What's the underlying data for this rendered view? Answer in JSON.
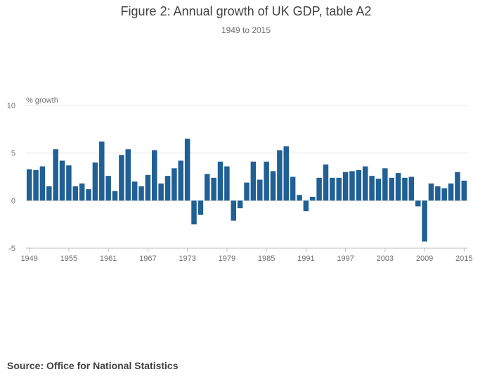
{
  "title": "Figure 2: Annual growth of UK GDP, table A2",
  "subtitle": "1949 to 2015",
  "source": "Source: Office for National Statistics",
  "colors": {
    "bar": "#206095",
    "grid": "#e6e6e6",
    "axis": "#bebebe"
  },
  "chart_data": {
    "type": "bar",
    "ylabel": "% growth",
    "ylim": [
      -5,
      10
    ],
    "yticks": [
      -5,
      0,
      5,
      10
    ],
    "xticks": [
      "1949",
      "1955",
      "1961",
      "1967",
      "1973",
      "1979",
      "1985",
      "1991",
      "1997",
      "2003",
      "2009",
      "2015"
    ],
    "grid": true,
    "categories": [
      "1949",
      "1950",
      "1951",
      "1952",
      "1953",
      "1954",
      "1955",
      "1956",
      "1957",
      "1958",
      "1959",
      "1960",
      "1961",
      "1962",
      "1963",
      "1964",
      "1965",
      "1966",
      "1967",
      "1968",
      "1969",
      "1970",
      "1971",
      "1972",
      "1973",
      "1974",
      "1975",
      "1976",
      "1977",
      "1978",
      "1979",
      "1980",
      "1981",
      "1982",
      "1983",
      "1984",
      "1985",
      "1986",
      "1987",
      "1988",
      "1989",
      "1990",
      "1991",
      "1992",
      "1993",
      "1994",
      "1995",
      "1996",
      "1997",
      "1998",
      "1999",
      "2000",
      "2001",
      "2002",
      "2003",
      "2004",
      "2005",
      "2006",
      "2007",
      "2008",
      "2009",
      "2010",
      "2011",
      "2012",
      "2013",
      "2014",
      "2015"
    ],
    "values": [
      3.3,
      3.2,
      3.6,
      1.5,
      5.4,
      4.2,
      3.7,
      1.5,
      1.8,
      1.2,
      4.0,
      6.2,
      2.6,
      1.0,
      4.8,
      5.4,
      2.0,
      1.5,
      2.7,
      5.3,
      1.8,
      2.6,
      3.4,
      4.2,
      6.5,
      -2.5,
      -1.5,
      2.8,
      2.4,
      4.1,
      3.6,
      -2.1,
      -0.8,
      1.9,
      4.1,
      2.2,
      4.1,
      3.1,
      5.3,
      5.7,
      2.5,
      0.6,
      -1.1,
      0.4,
      2.4,
      3.8,
      2.4,
      2.4,
      3.0,
      3.1,
      3.2,
      3.6,
      2.6,
      2.3,
      3.4,
      2.4,
      2.9,
      2.4,
      2.5,
      -0.6,
      -4.3,
      1.8,
      1.5,
      1.3,
      1.8,
      3.0,
      2.1
    ]
  }
}
